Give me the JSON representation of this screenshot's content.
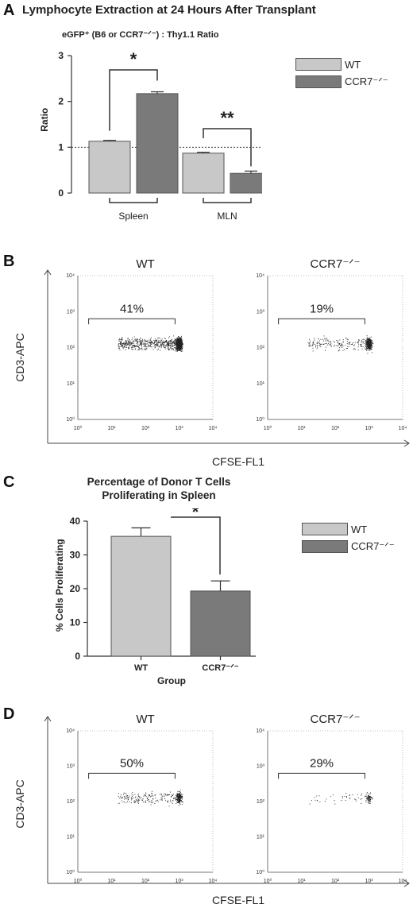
{
  "panels": {
    "a": {
      "letter": "A",
      "title": "Lymphocyte Extraction at 24 Hours After Transplant",
      "subtitle": "eGFP⁺ (B6 or CCR7⁻ᐟ⁻) : Thy1.1 Ratio"
    },
    "b": {
      "letter": "B",
      "plots": [
        {
          "title": "WT",
          "gate_label": "41%"
        },
        {
          "title": "CCR7⁻ᐟ⁻",
          "gate_label": "19%"
        }
      ],
      "xlabel": "CFSE-FL1",
      "ylabel": "CD3-APC"
    },
    "c": {
      "letter": "C",
      "title_line1": "Percentage of Donor T Cells",
      "title_line2": "Proliferating in Spleen"
    },
    "d": {
      "letter": "D",
      "plots": [
        {
          "title": "WT",
          "gate_label": "50%"
        },
        {
          "title": "CCR7⁻ᐟ⁻",
          "gate_label": "29%"
        }
      ],
      "xlabel": "CFSE-FL1",
      "ylabel": "CD3-APC"
    }
  },
  "legend": {
    "wt_label": "WT",
    "ccr7_label": "CCR7⁻ᐟ⁻",
    "wt_color": "#c8c8c8",
    "ccr7_color": "#7a7a7a"
  },
  "chart_data": [
    {
      "type": "bar",
      "title": "Lymphocyte Extraction at 24 Hours After Transplant",
      "subtitle": "eGFP⁺ (B6 or CCR7⁻ᐟ⁻) : Thy1.1 Ratio",
      "ylabel": "Ratio",
      "ylim": [
        0,
        3
      ],
      "yticks": [
        "0",
        "1",
        "2",
        "3"
      ],
      "categories": [
        "Spleen",
        "MLN"
      ],
      "series": [
        {
          "name": "WT",
          "values": [
            1.13,
            0.87
          ],
          "errors": [
            0.02,
            0.02
          ]
        },
        {
          "name": "CCR7⁻ᐟ⁻",
          "values": [
            2.17,
            0.43
          ],
          "errors": [
            0.04,
            0.05
          ]
        }
      ],
      "reference_line": 1,
      "significance": [
        "*",
        "**"
      ],
      "legend": "top-right"
    },
    {
      "type": "scatter",
      "title": "WT",
      "xlabel": "CFSE-FL1",
      "ylabel": "CD3-APC",
      "axis_scale": "log",
      "ticks": [
        "10⁰",
        "10¹",
        "10²",
        "10³",
        "10⁴"
      ],
      "gate": "41%"
    },
    {
      "type": "scatter",
      "title": "CCR7⁻ᐟ⁻",
      "xlabel": "CFSE-FL1",
      "ylabel": "CD3-APC",
      "axis_scale": "log",
      "ticks": [
        "10⁰",
        "10¹",
        "10²",
        "10³",
        "10⁴"
      ],
      "gate": "19%"
    },
    {
      "type": "bar",
      "title": "Percentage of Donor T Cells Proliferating in Spleen",
      "xlabel": "Group",
      "ylabel": "% Cells Proliferating",
      "ylim": [
        0,
        40
      ],
      "yticks": [
        "0",
        "10",
        "20",
        "30",
        "40"
      ],
      "categories": [
        "WT",
        "CCR7⁻ᐟ⁻"
      ],
      "values": [
        35.5,
        19.3
      ],
      "errors": [
        2.5,
        3.0
      ],
      "significance": "*",
      "legend": "top-right"
    },
    {
      "type": "scatter",
      "title": "WT",
      "xlabel": "CFSE-FL1",
      "ylabel": "CD3-APC",
      "axis_scale": "log",
      "ticks": [
        "10⁰",
        "10¹",
        "10²",
        "10³",
        "10⁴"
      ],
      "gate": "50%"
    },
    {
      "type": "scatter",
      "title": "CCR7⁻ᐟ⁻",
      "xlabel": "CFSE-FL1",
      "ylabel": "CD3-APC",
      "axis_scale": "log",
      "ticks": [
        "10⁰",
        "10¹",
        "10²",
        "10³",
        "10⁴"
      ],
      "gate": "29%"
    }
  ]
}
